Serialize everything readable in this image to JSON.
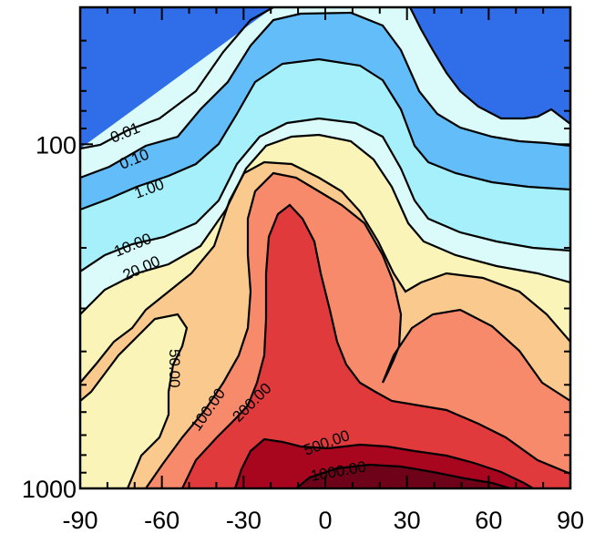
{
  "chart_data": {
    "type": "contour",
    "title": "",
    "xlabel": "",
    "ylabel": "",
    "x": {
      "range": [
        -90,
        90
      ],
      "ticks": [
        -90,
        -60,
        -30,
        0,
        30,
        60,
        90
      ],
      "tick_labels": [
        "-90",
        "-60",
        "-30",
        "0",
        "30",
        "60",
        "90"
      ]
    },
    "y": {
      "scale": "log",
      "reversed": true,
      "range": [
        1000,
        40
      ],
      "ticks": [
        100,
        1000
      ],
      "tick_labels": [
        "100",
        "1000"
      ]
    },
    "levels": [
      0.01,
      0.1,
      1,
      10,
      20,
      50,
      100,
      200,
      500,
      1000
    ],
    "level_labels": [
      "0.01",
      "0.10",
      "1.00",
      "10.00",
      "20.00",
      "50.00",
      "100.00",
      "200.00",
      "500.00",
      "1000.00"
    ],
    "fill_colors": [
      "#2f6ee8",
      "#62bdf8",
      "#a6f0fb",
      "#dafbfa",
      "#fbf4b8",
      "#fac98e",
      "#f78a6a",
      "#e03a3c",
      "#a8061f",
      "#6e0218"
    ],
    "frame_color": "#000000",
    "grid": false
  }
}
